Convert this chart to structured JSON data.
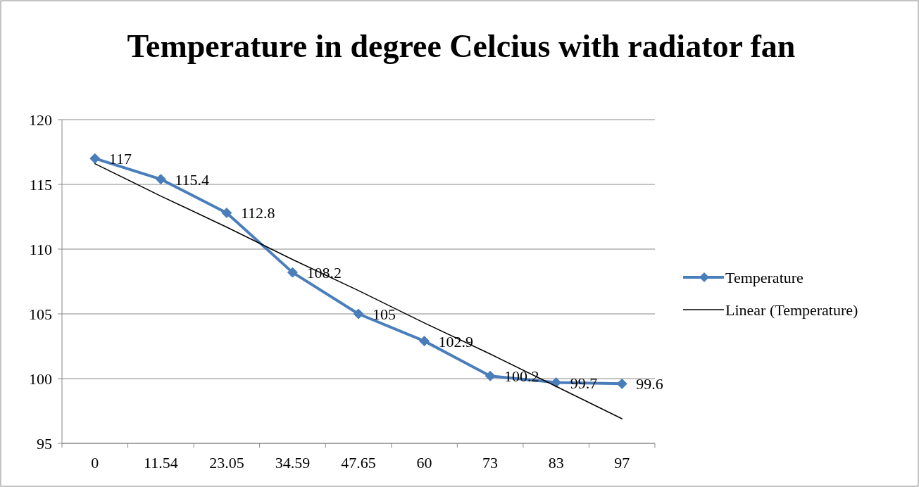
{
  "chart_data": {
    "type": "line",
    "title": "Temperature in degree Celcius with radiator fan",
    "categories": [
      "0",
      "11.54",
      "23.05",
      "34.59",
      "47.65",
      "60",
      "73",
      "83",
      "97"
    ],
    "series": [
      {
        "name": "Temperature",
        "color": "#4a7ebb",
        "marker": "diamond",
        "values": [
          117,
          115.4,
          112.8,
          108.2,
          105,
          102.9,
          100.2,
          99.7,
          99.6
        ],
        "value_labels": [
          "117",
          "115.4",
          "112.8",
          "108.2",
          "105",
          "102.9",
          "100.2",
          "99.7",
          "99.6"
        ]
      },
      {
        "name": "Linear (Temperature)",
        "color": "#000000",
        "marker": "none",
        "line_style": "solid",
        "values": [
          116.6,
          114.1,
          111.7,
          109.2,
          106.8,
          104.3,
          101.9,
          99.4,
          96.9
        ]
      }
    ],
    "ylim": [
      95,
      120
    ],
    "yticks": [
      95,
      100,
      105,
      110,
      115,
      120
    ],
    "grid": "y",
    "legend": "right"
  }
}
